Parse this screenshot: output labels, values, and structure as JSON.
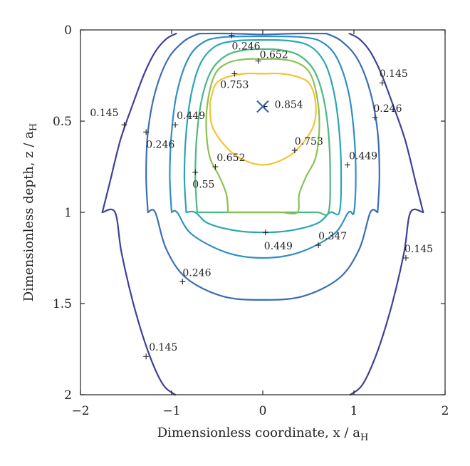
{
  "chart_data": {
    "type": "contour",
    "title": "",
    "xlabel": {
      "main": "Dimensionless coordinate, x / a",
      "sub": "H"
    },
    "ylabel": {
      "main": "Dimensionless depth, z / a",
      "sub": "H"
    },
    "xlim": [
      -2,
      2
    ],
    "ylim": [
      0,
      2
    ],
    "y_inverted": true,
    "grid": false,
    "xticks": [
      "−2",
      "−1",
      "0",
      "1",
      "2"
    ],
    "yticks": [
      "0",
      "0.5",
      "1",
      "1.5",
      "2"
    ],
    "xtick_values": [
      -2,
      -1,
      0,
      1,
      2
    ],
    "ytick_values": [
      0,
      0.5,
      1,
      1.5,
      2
    ],
    "colors": {
      "0.145": "#3f3f9a",
      "0.246": "#3b6db5",
      "0.347": "#2f8fc4",
      "0.449": "#2aa6b3",
      "0.55": "#4cb882",
      "0.652": "#8cc152",
      "0.753": "#f5c236",
      "marker": "#3a62ad"
    },
    "contours": [
      {
        "level": "0.145",
        "paths": [
          [
            [
              -1.76,
              1.0
            ],
            [
              -1.68,
              0.84
            ],
            [
              -1.56,
              0.6
            ],
            [
              -1.42,
              0.4
            ],
            [
              -1.3,
              0.24
            ],
            [
              -1.18,
              0.12
            ],
            [
              -1.06,
              0.05
            ],
            [
              -0.95,
              0.02
            ]
          ],
          [
            [
              1.76,
              1.0
            ],
            [
              1.68,
              0.84
            ],
            [
              1.56,
              0.6
            ],
            [
              1.42,
              0.4
            ],
            [
              1.3,
              0.24
            ],
            [
              1.18,
              0.12
            ],
            [
              1.06,
              0.05
            ],
            [
              0.95,
              0.02
            ]
          ],
          [
            [
              -1.76,
              1.0
            ],
            [
              -1.62,
              1.0
            ],
            [
              -1.55,
              1.22
            ],
            [
              -1.42,
              1.5
            ],
            [
              -1.26,
              1.76
            ],
            [
              -1.1,
              1.94
            ],
            [
              -0.96,
              2.0
            ]
          ],
          [
            [
              1.76,
              1.0
            ],
            [
              1.62,
              1.0
            ],
            [
              1.55,
              1.22
            ],
            [
              1.42,
              1.5
            ],
            [
              1.26,
              1.76
            ],
            [
              1.1,
              1.94
            ],
            [
              0.96,
              2.0
            ]
          ]
        ]
      },
      {
        "level": "0.246",
        "paths": [
          [
            [
              -1.26,
              1.0
            ],
            [
              -1.28,
              0.8
            ],
            [
              -1.26,
              0.56
            ],
            [
              -1.18,
              0.34
            ],
            [
              -1.04,
              0.16
            ],
            [
              -0.86,
              0.06
            ],
            [
              -0.7,
              0.02
            ]
          ],
          [
            [
              1.26,
              1.0
            ],
            [
              1.28,
              0.8
            ],
            [
              1.26,
              0.56
            ],
            [
              1.18,
              0.34
            ],
            [
              1.04,
              0.16
            ],
            [
              0.86,
              0.06
            ],
            [
              0.7,
              0.02
            ]
          ],
          [
            [
              -1.26,
              1.0
            ],
            [
              -1.18,
              1.0
            ],
            [
              -1.06,
              1.2
            ],
            [
              -0.84,
              1.36
            ],
            [
              -0.44,
              1.46
            ],
            [
              0.0,
              1.48
            ],
            [
              0.44,
              1.46
            ],
            [
              0.84,
              1.36
            ],
            [
              1.06,
              1.2
            ],
            [
              1.18,
              1.0
            ],
            [
              1.26,
              1.0
            ]
          ],
          [
            [
              -0.7,
              0.02
            ],
            [
              -0.34,
              0.02
            ],
            [
              0.0,
              0.025
            ],
            [
              0.34,
              0.02
            ],
            [
              0.7,
              0.02
            ]
          ]
        ]
      },
      {
        "level": "0.347",
        "paths": [
          [
            [
              -1.0,
              1.0
            ],
            [
              -1.02,
              0.8
            ],
            [
              -1.0,
              0.56
            ],
            [
              -0.94,
              0.34
            ],
            [
              -0.82,
              0.16
            ],
            [
              -0.66,
              0.07
            ],
            [
              -0.44,
              0.04
            ],
            [
              0.0,
              0.035
            ],
            [
              0.44,
              0.04
            ],
            [
              0.66,
              0.07
            ],
            [
              0.82,
              0.16
            ],
            [
              0.94,
              0.34
            ],
            [
              1.0,
              0.56
            ],
            [
              1.02,
              0.8
            ],
            [
              1.0,
              1.0
            ],
            [
              0.94,
              1.0
            ],
            [
              0.78,
              1.12
            ],
            [
              0.4,
              1.22
            ],
            [
              0.0,
              1.25
            ],
            [
              -0.4,
              1.22
            ],
            [
              -0.78,
              1.12
            ],
            [
              -0.94,
              1.0
            ],
            [
              -1.0,
              1.0
            ]
          ]
        ]
      },
      {
        "level": "0.449",
        "paths": [
          [
            [
              -0.84,
              1.0
            ],
            [
              -0.86,
              0.8
            ],
            [
              -0.84,
              0.56
            ],
            [
              -0.78,
              0.34
            ],
            [
              -0.68,
              0.18
            ],
            [
              -0.52,
              0.09
            ],
            [
              -0.3,
              0.06
            ],
            [
              0.0,
              0.055
            ],
            [
              0.3,
              0.06
            ],
            [
              0.52,
              0.09
            ],
            [
              0.68,
              0.18
            ],
            [
              0.78,
              0.34
            ],
            [
              0.84,
              0.56
            ],
            [
              0.86,
              0.8
            ],
            [
              0.84,
              1.0
            ],
            [
              0.74,
              1.0
            ],
            [
              0.6,
              1.06
            ],
            [
              0.3,
              1.1
            ],
            [
              0.0,
              1.11
            ],
            [
              -0.3,
              1.1
            ],
            [
              -0.6,
              1.06
            ],
            [
              -0.74,
              1.0
            ],
            [
              -0.84,
              1.0
            ]
          ]
        ]
      },
      {
        "level": "0.55",
        "paths": [
          [
            [
              -0.72,
              1.0
            ],
            [
              -0.74,
              0.8
            ],
            [
              -0.72,
              0.56
            ],
            [
              -0.66,
              0.36
            ],
            [
              -0.56,
              0.22
            ],
            [
              -0.4,
              0.14
            ],
            [
              -0.2,
              0.11
            ],
            [
              0.0,
              0.105
            ],
            [
              0.2,
              0.11
            ],
            [
              0.4,
              0.14
            ],
            [
              0.56,
              0.22
            ],
            [
              0.66,
              0.36
            ],
            [
              0.72,
              0.56
            ],
            [
              0.74,
              0.8
            ],
            [
              0.72,
              1.0
            ],
            [
              0.6,
              1.0
            ],
            [
              0.4,
              1.0
            ],
            [
              0.0,
              1.0
            ],
            [
              -0.4,
              1.0
            ],
            [
              -0.6,
              1.0
            ],
            [
              -0.72,
              1.0
            ]
          ]
        ]
      },
      {
        "level": "0.652",
        "paths": [
          [
            [
              -0.38,
              1.0
            ],
            [
              -0.4,
              0.9
            ],
            [
              -0.48,
              0.8
            ],
            [
              -0.58,
              0.7
            ],
            [
              -0.62,
              0.54
            ],
            [
              -0.6,
              0.38
            ],
            [
              -0.52,
              0.24
            ],
            [
              -0.38,
              0.18
            ],
            [
              -0.18,
              0.16
            ],
            [
              0.0,
              0.16
            ],
            [
              0.18,
              0.16
            ],
            [
              0.38,
              0.18
            ],
            [
              0.52,
              0.24
            ],
            [
              0.6,
              0.38
            ],
            [
              0.62,
              0.54
            ],
            [
              0.58,
              0.7
            ],
            [
              0.48,
              0.8
            ],
            [
              0.4,
              0.9
            ],
            [
              0.38,
              1.0
            ],
            [
              0.2,
              1.0
            ],
            [
              0.0,
              1.0
            ],
            [
              -0.2,
              1.0
            ],
            [
              -0.38,
              1.0
            ]
          ]
        ]
      },
      {
        "level": "0.753",
        "paths": [
          [
            [
              -0.58,
              0.4
            ],
            [
              -0.52,
              0.3
            ],
            [
              -0.4,
              0.26
            ],
            [
              -0.2,
              0.24
            ],
            [
              0.0,
              0.24
            ],
            [
              0.2,
              0.24
            ],
            [
              0.4,
              0.26
            ],
            [
              0.52,
              0.3
            ],
            [
              0.58,
              0.4
            ],
            [
              0.56,
              0.52
            ],
            [
              0.44,
              0.62
            ],
            [
              0.26,
              0.7
            ],
            [
              0.0,
              0.74
            ],
            [
              -0.26,
              0.7
            ],
            [
              -0.44,
              0.62
            ],
            [
              -0.56,
              0.52
            ],
            [
              -0.58,
              0.4
            ]
          ]
        ]
      }
    ],
    "labels": [
      {
        "text": "0.246",
        "x": -0.34,
        "y": 0.03,
        "dx": 0,
        "dy": 20
      },
      {
        "text": "0.652",
        "x": -0.05,
        "y": 0.17,
        "dx": 2,
        "dy": -4
      },
      {
        "text": "0.753",
        "x": -0.31,
        "y": 0.24,
        "dx": -20,
        "dy": 20
      },
      {
        "text": "0.145",
        "x": 1.31,
        "y": 0.29,
        "dx": -4,
        "dy": -8
      },
      {
        "text": "0.854",
        "x": 0.02,
        "y": 0.42,
        "dx": 14,
        "dy": 2
      },
      {
        "text": "0.145",
        "x": -1.52,
        "y": 0.52,
        "dx": -48,
        "dy": -12
      },
      {
        "text": "0.449",
        "x": -0.96,
        "y": 0.52,
        "dx": 2,
        "dy": -8
      },
      {
        "text": "0.246",
        "x": 1.23,
        "y": 0.48,
        "dx": -2,
        "dy": -8
      },
      {
        "text": "0.246",
        "x": -1.28,
        "y": 0.56,
        "dx": 0,
        "dy": 22
      },
      {
        "text": "0.753",
        "x": 0.35,
        "y": 0.66,
        "dx": 0,
        "dy": -8
      },
      {
        "text": "0.652",
        "x": -0.52,
        "y": 0.75,
        "dx": 2,
        "dy": -8
      },
      {
        "text": "0.449",
        "x": 0.93,
        "y": 0.74,
        "dx": 2,
        "dy": -8
      },
      {
        "text": "0.55",
        "x": -0.74,
        "y": 0.78,
        "dx": -4,
        "dy": 22
      },
      {
        "text": "0.449",
        "x": 0.03,
        "y": 1.11,
        "dx": -2,
        "dy": 24
      },
      {
        "text": "0.347",
        "x": 0.61,
        "y": 1.18,
        "dx": 0,
        "dy": -8
      },
      {
        "text": "0.145",
        "x": 1.57,
        "y": 1.25,
        "dx": -2,
        "dy": -8
      },
      {
        "text": "0.246",
        "x": -0.88,
        "y": 1.38,
        "dx": 0,
        "dy": -8
      },
      {
        "text": "0.145",
        "x": -1.28,
        "y": 1.79,
        "dx": 4,
        "dy": -8
      }
    ],
    "marker": {
      "x": 0.0,
      "y": 0.42,
      "symbol": "×"
    }
  }
}
